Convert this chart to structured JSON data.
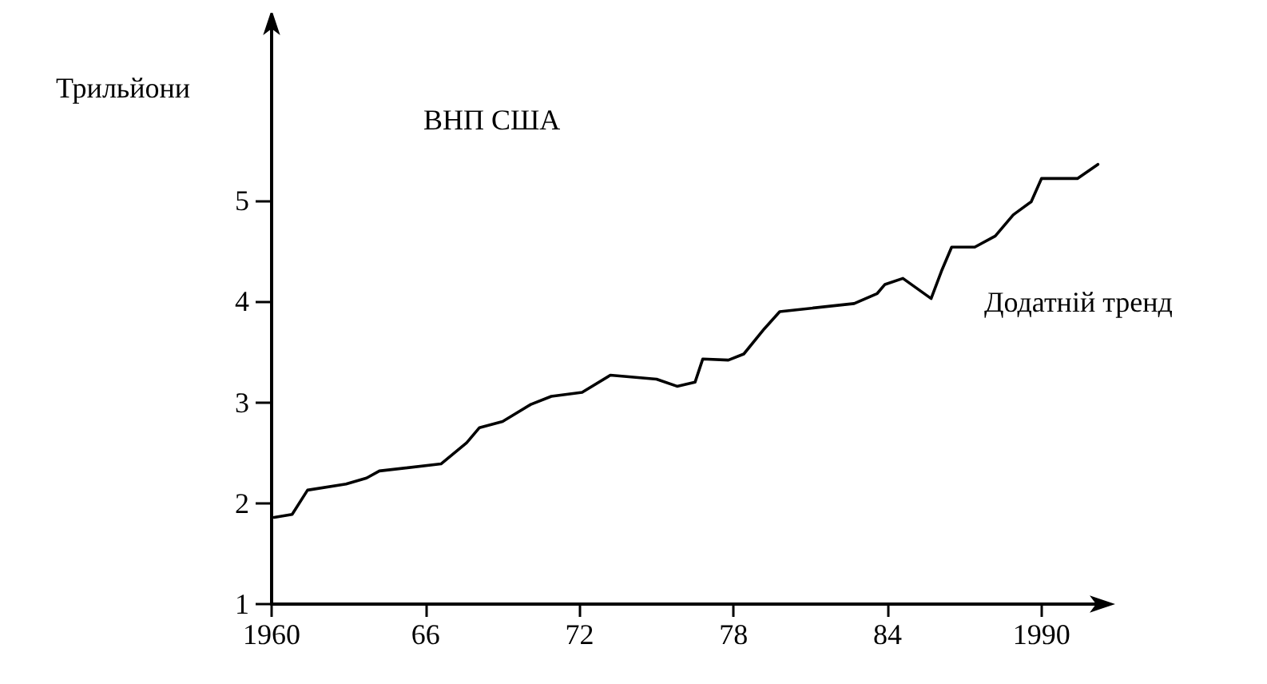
{
  "chart_data": {
    "type": "line",
    "title": "ВНП США",
    "ylabel": "Трильйони",
    "x": [
      1960.1,
      1960.8,
      1961.4,
      1962.9,
      1963.7,
      1964.2,
      1966.6,
      1967.6,
      1968.1,
      1969.0,
      1970.1,
      1970.9,
      1972.1,
      1973.2,
      1975.0,
      1975.8,
      1976.5,
      1976.8,
      1977.8,
      1978.4,
      1979.2,
      1979.8,
      1982.7,
      1983.6,
      1983.9,
      1984.6,
      1985.7,
      1986.1,
      1986.5,
      1987.4,
      1988.2,
      1988.9,
      1989.6,
      1990.0,
      1991.4,
      1992.2
    ],
    "series": [
      {
        "color": "#000000",
        "values": [
          1.86,
          1.89,
          2.13,
          2.19,
          2.25,
          2.32,
          2.39,
          2.6,
          2.75,
          2.81,
          2.98,
          3.06,
          3.1,
          3.27,
          3.23,
          3.16,
          3.2,
          3.43,
          3.42,
          3.48,
          3.73,
          3.9,
          3.98,
          4.08,
          4.17,
          4.23,
          4.03,
          4.3,
          4.54,
          4.54,
          4.65,
          4.86,
          4.99,
          5.22,
          5.22,
          5.36
        ]
      }
    ],
    "xlim": [
      1960,
      1992.5
    ],
    "ylim": [
      1,
      6.8
    ],
    "xticks": [
      1960,
      {
        "value": 1966,
        "label": "66"
      },
      {
        "value": 1972,
        "label": "72"
      },
      {
        "value": 1978,
        "label": "78"
      },
      {
        "value": 1984,
        "label": "84"
      },
      1990
    ],
    "yticks": [
      1,
      2,
      3,
      4,
      5
    ],
    "annotations": [
      "Додатній тренд"
    ],
    "grid": false,
    "marker": "none",
    "line_style": "solid"
  }
}
